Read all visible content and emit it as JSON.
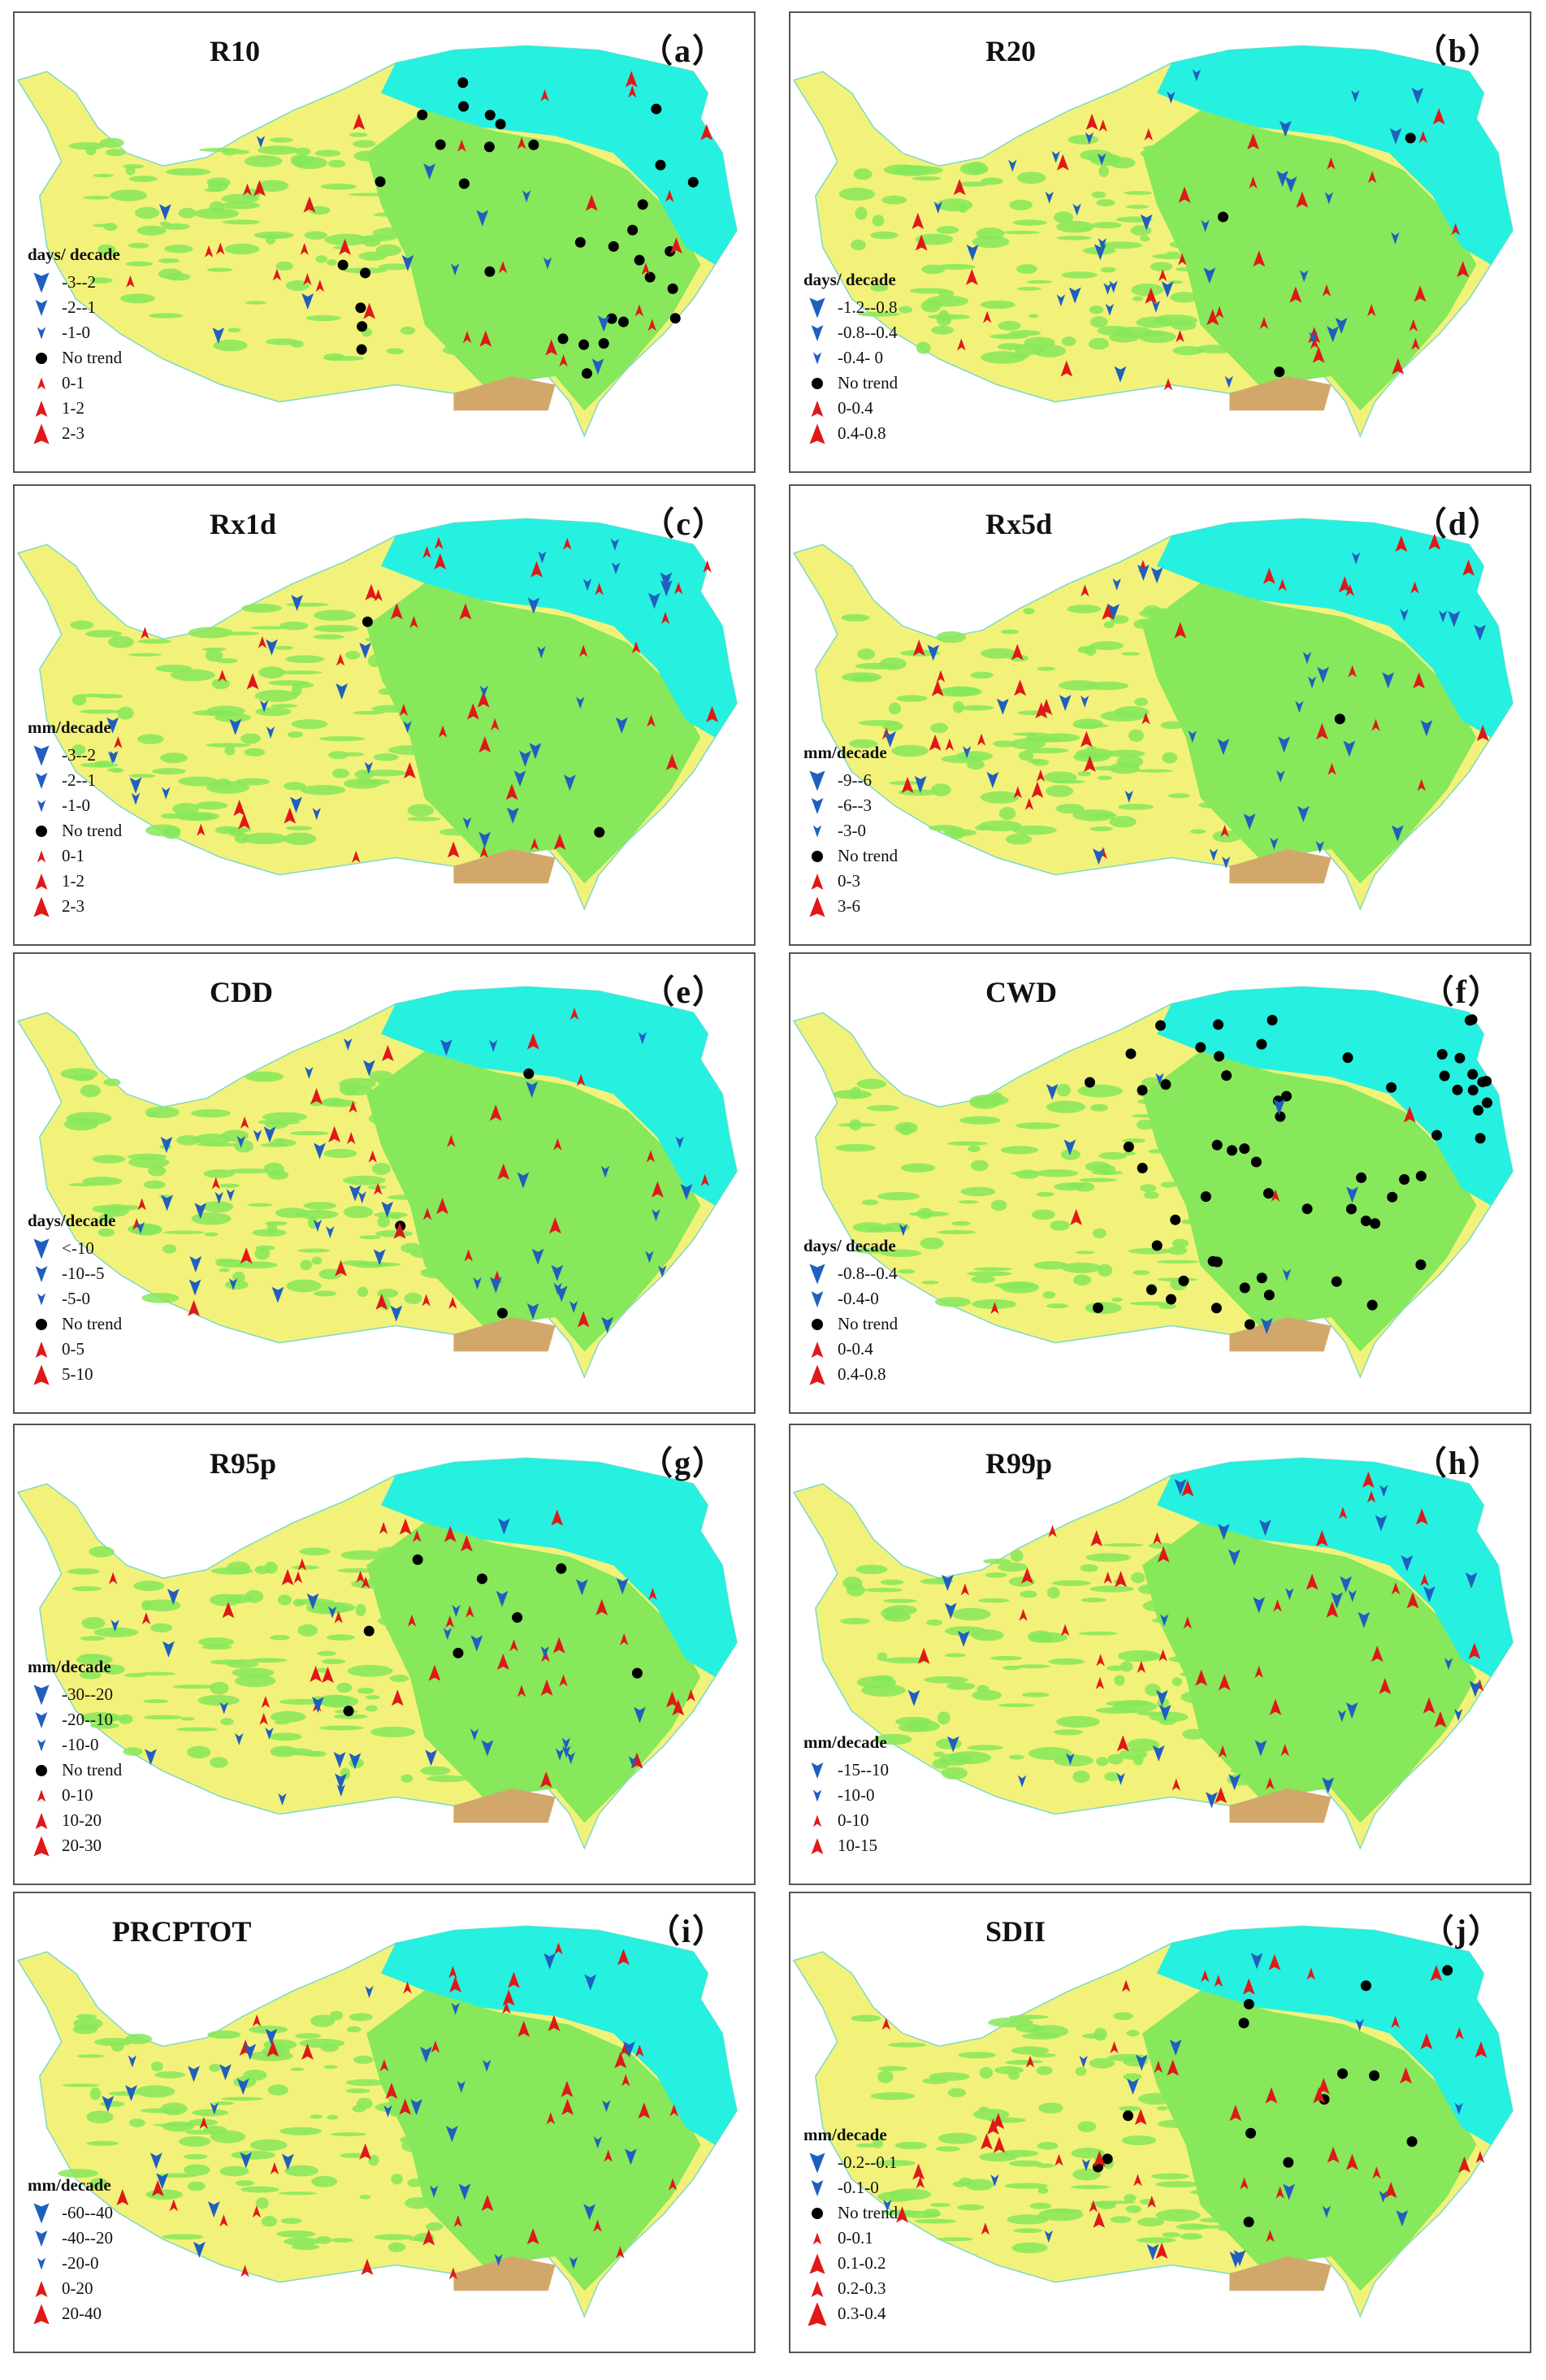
{
  "colors": {
    "arrow_down": "#1f5fbf",
    "arrow_up": "#e01818",
    "no_trend": "#000000",
    "map_cyan": "#26f0e0",
    "map_green": "#86e85a",
    "map_yellow": "#f2f27a",
    "map_brown": "#d2a86a"
  },
  "panels": [
    {
      "letter": "（a）",
      "title": "R10",
      "unit": "days/ decade",
      "legend": [
        {
          "sym": "down",
          "size": 3,
          "label": "-3--2"
        },
        {
          "sym": "down",
          "size": 2,
          "label": "-2--1"
        },
        {
          "sym": "down",
          "size": 1,
          "label": "-1-0"
        },
        {
          "sym": "dot",
          "label": "No trend"
        },
        {
          "sym": "up",
          "size": 1,
          "label": "0-1"
        },
        {
          "sym": "up",
          "size": 2,
          "label": "1-2"
        },
        {
          "sym": "up",
          "size": 3,
          "label": "2-3"
        }
      ],
      "dots": 34,
      "ups": 30,
      "downs": 12
    },
    {
      "letter": "（b）",
      "title": "R20",
      "unit": "days/ decade",
      "legend": [
        {
          "sym": "down",
          "size": 3,
          "label": "-1.2--0.8"
        },
        {
          "sym": "down",
          "size": 2,
          "label": "-0.8--0.4"
        },
        {
          "sym": "down",
          "size": 1,
          "label": "-0.4- 0"
        },
        {
          "sym": "dot",
          "label": "No trend"
        },
        {
          "sym": "up",
          "size": 2,
          "label": "0-0.4"
        },
        {
          "sym": "up",
          "size": 3,
          "label": "0.4-0.8"
        }
      ],
      "dots": 3,
      "ups": 40,
      "downs": 36
    },
    {
      "letter": "（c）",
      "title": "Rx1d",
      "unit": "mm/decade",
      "legend": [
        {
          "sym": "down",
          "size": 3,
          "label": "-3--2"
        },
        {
          "sym": "down",
          "size": 2,
          "label": "-2--1"
        },
        {
          "sym": "down",
          "size": 1,
          "label": "-1-0"
        },
        {
          "sym": "dot",
          "label": "No trend"
        },
        {
          "sym": "up",
          "size": 1,
          "label": "0-1"
        },
        {
          "sym": "up",
          "size": 2,
          "label": "1-2"
        },
        {
          "sym": "up",
          "size": 3,
          "label": "2-3"
        }
      ],
      "dots": 2,
      "ups": 42,
      "downs": 36
    },
    {
      "letter": "（d）",
      "title": "Rx5d",
      "unit": "mm/decade",
      "legend": [
        {
          "sym": "down",
          "size": 3,
          "label": "-9--6"
        },
        {
          "sym": "down",
          "size": 2,
          "label": "-6--3"
        },
        {
          "sym": "down",
          "size": 1,
          "label": "-3-0"
        },
        {
          "sym": "dot",
          "label": "No trend"
        },
        {
          "sym": "up",
          "size": 2,
          "label": "0-3"
        },
        {
          "sym": "up",
          "size": 3,
          "label": "3-6"
        }
      ],
      "dots": 1,
      "ups": 40,
      "downs": 38
    },
    {
      "letter": "（e）",
      "title": "CDD",
      "unit": "days/decade",
      "legend": [
        {
          "sym": "down",
          "size": 3,
          "label": "<-10"
        },
        {
          "sym": "down",
          "size": 2,
          "label": "-10--5"
        },
        {
          "sym": "down",
          "size": 1,
          "label": "-5-0"
        },
        {
          "sym": "dot",
          "label": "No trend"
        },
        {
          "sym": "up",
          "size": 2,
          "label": "0-5"
        },
        {
          "sym": "up",
          "size": 3,
          "label": "5-10"
        }
      ],
      "dots": 3,
      "ups": 34,
      "downs": 44
    },
    {
      "letter": "（f）",
      "title": "CWD",
      "unit": "days/ decade",
      "legend": [
        {
          "sym": "down",
          "size": 3,
          "label": "-0.8--0.4"
        },
        {
          "sym": "down",
          "size": 2,
          "label": "-0.4-0"
        },
        {
          "sym": "dot",
          "label": "No trend"
        },
        {
          "sym": "up",
          "size": 2,
          "label": "0-0.4"
        },
        {
          "sym": "up",
          "size": 3,
          "label": "0.4-0.8"
        }
      ],
      "dots": 62,
      "ups": 4,
      "downs": 8
    },
    {
      "letter": "（g）",
      "title": "R95p",
      "unit": "mm/decade",
      "legend": [
        {
          "sym": "down",
          "size": 3,
          "label": "-30--20"
        },
        {
          "sym": "down",
          "size": 2,
          "label": "-20--10"
        },
        {
          "sym": "down",
          "size": 1,
          "label": "-10-0"
        },
        {
          "sym": "dot",
          "label": "No trend"
        },
        {
          "sym": "up",
          "size": 1,
          "label": "0-10"
        },
        {
          "sym": "up",
          "size": 2,
          "label": "10-20"
        },
        {
          "sym": "up",
          "size": 3,
          "label": "20-30"
        }
      ],
      "dots": 8,
      "ups": 40,
      "downs": 32
    },
    {
      "letter": "（h）",
      "title": "R99p",
      "unit": "mm/decade",
      "legend": [
        {
          "sym": "down",
          "size": 2,
          "label": "-15--10"
        },
        {
          "sym": "down",
          "size": 1,
          "label": "-10-0"
        },
        {
          "sym": "up",
          "size": 1,
          "label": "0-10"
        },
        {
          "sym": "up",
          "size": 2,
          "label": "10-15"
        }
      ],
      "dots": 0,
      "ups": 44,
      "downs": 36
    },
    {
      "letter": "（i）",
      "title": "PRCPTOT",
      "unit": "mm/decade",
      "legend": [
        {
          "sym": "down",
          "size": 3,
          "label": "-60--40"
        },
        {
          "sym": "down",
          "size": 2,
          "label": "-40--20"
        },
        {
          "sym": "down",
          "size": 1,
          "label": "-20-0"
        },
        {
          "sym": "up",
          "size": 2,
          "label": "0-20"
        },
        {
          "sym": "up",
          "size": 3,
          "label": "20-40"
        }
      ],
      "dots": 0,
      "ups": 46,
      "downs": 34
    },
    {
      "letter": "（j）",
      "title": "SDII",
      "unit": "mm/decade",
      "legend": [
        {
          "sym": "down",
          "size": 3,
          "label": "-0.2--0.1"
        },
        {
          "sym": "down",
          "size": 2,
          "label": "-0.1-0"
        },
        {
          "sym": "dot",
          "label": "No trend"
        },
        {
          "sym": "up",
          "size": 1,
          "label": "0-0.1"
        },
        {
          "sym": "up",
          "size": 3,
          "label": "0.1-0.2"
        },
        {
          "sym": "up",
          "size": 2,
          "label": "0.2-0.3"
        },
        {
          "sym": "up",
          "size": 4,
          "label": "0.3-0.4"
        }
      ],
      "dots": 14,
      "ups": 46,
      "downs": 18
    }
  ]
}
